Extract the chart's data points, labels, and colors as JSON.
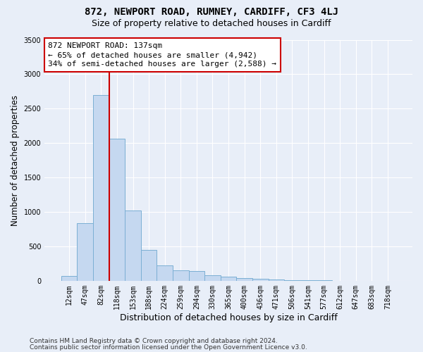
{
  "title1": "872, NEWPORT ROAD, RUMNEY, CARDIFF, CF3 4LJ",
  "title2": "Size of property relative to detached houses in Cardiff",
  "xlabel": "Distribution of detached houses by size in Cardiff",
  "ylabel": "Number of detached properties",
  "categories": [
    "12sqm",
    "47sqm",
    "82sqm",
    "118sqm",
    "153sqm",
    "188sqm",
    "224sqm",
    "259sqm",
    "294sqm",
    "330sqm",
    "365sqm",
    "400sqm",
    "436sqm",
    "471sqm",
    "506sqm",
    "541sqm",
    "577sqm",
    "612sqm",
    "647sqm",
    "683sqm",
    "718sqm"
  ],
  "values": [
    65,
    840,
    2700,
    2060,
    1020,
    450,
    220,
    150,
    140,
    75,
    55,
    35,
    25,
    15,
    8,
    5,
    4,
    3,
    3,
    2,
    2
  ],
  "bar_color": "#c5d8f0",
  "bar_edge_color": "#7bafd4",
  "vline_color": "#cc0000",
  "vline_index": 3,
  "annotation_text": "872 NEWPORT ROAD: 137sqm\n← 65% of detached houses are smaller (4,942)\n34% of semi-detached houses are larger (2,588) →",
  "annotation_box_color": "#ffffff",
  "annotation_box_edge": "#cc0000",
  "ylim": [
    0,
    3500
  ],
  "yticks": [
    0,
    500,
    1000,
    1500,
    2000,
    2500,
    3000,
    3500
  ],
  "footer1": "Contains HM Land Registry data © Crown copyright and database right 2024.",
  "footer2": "Contains public sector information licensed under the Open Government Licence v3.0.",
  "bg_color": "#e8eef8",
  "plot_bg_color": "#e8eef8",
  "grid_color": "#ffffff",
  "title1_fontsize": 10,
  "title2_fontsize": 9,
  "annot_fontsize": 8,
  "xlabel_fontsize": 9,
  "ylabel_fontsize": 8.5,
  "tick_fontsize": 7,
  "footer_fontsize": 6.5
}
